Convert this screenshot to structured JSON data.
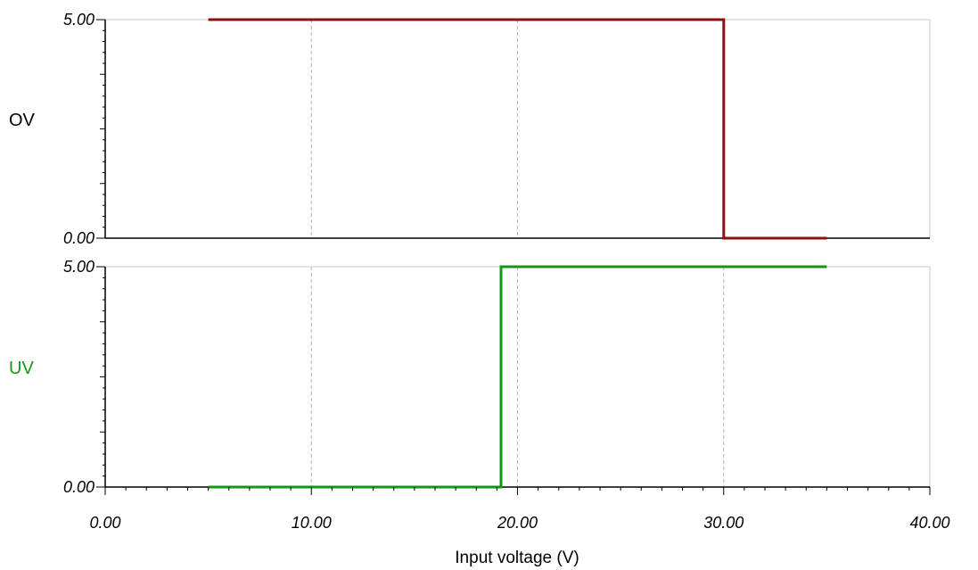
{
  "chart_data": {
    "type": "line",
    "xlabel": "Input voltage (V)",
    "xlim": [
      0,
      40
    ],
    "x_ticks": [
      "0.00",
      "10.00",
      "20.00",
      "30.00",
      "40.00"
    ],
    "grid": true,
    "panels": [
      {
        "ylabel": "OV",
        "ylim": [
          0,
          5
        ],
        "y_ticks": [
          "5.00",
          "0.00"
        ],
        "color": "#8b1010",
        "series": [
          {
            "x": [
              5,
              30,
              30,
              35
            ],
            "y": [
              5,
              5,
              0,
              0
            ]
          }
        ]
      },
      {
        "ylabel": "UV",
        "ylim": [
          0,
          5
        ],
        "y_ticks": [
          "5.00",
          "0.00"
        ],
        "color": "#169616",
        "series": [
          {
            "x": [
              5,
              19.2,
              19.2,
              35
            ],
            "y": [
              0,
              0,
              5,
              5
            ]
          }
        ]
      }
    ]
  }
}
